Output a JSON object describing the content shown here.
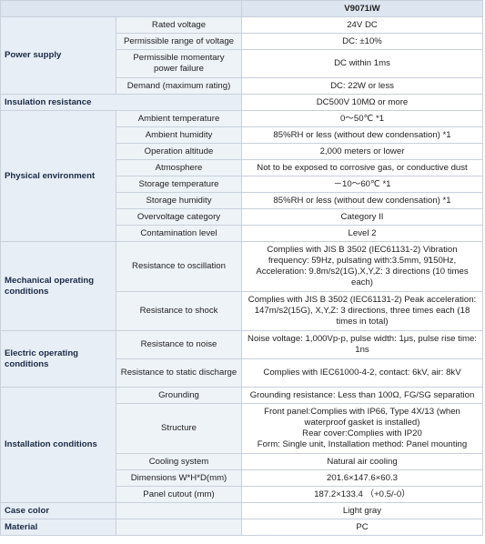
{
  "model": "V9071iW",
  "groups": [
    {
      "category": "Power supply",
      "rows": [
        {
          "param": "Rated voltage",
          "value": "24V DC"
        },
        {
          "param": "Permissible range of voltage",
          "value": "DC: ±10%"
        },
        {
          "param": "Permissible momentary power failure",
          "value": "DC within 1ms"
        },
        {
          "param": "Demand (maximum rating)",
          "value": "DC: 22W or less"
        }
      ]
    },
    {
      "category": "Insulation resistance",
      "value": "DC500V 10MΩ or more"
    },
    {
      "category": "Physical environment",
      "rows": [
        {
          "param": "Ambient temperature",
          "value": "0～50℃ *1"
        },
        {
          "param": "Ambient humidity",
          "value": "85%RH or less (without dew condensation) *1"
        },
        {
          "param": "Operation altitude",
          "value": "2,000 meters or lower"
        },
        {
          "param": "Atmosphere",
          "value": "Not to be exposed to corrosive gas, or conductive dust"
        },
        {
          "param": "Storage temperature",
          "value": "－10～60℃ *1"
        },
        {
          "param": "Storage humidity",
          "value": "85%RH or less (without dew condensation) *1"
        },
        {
          "param": "Overvoltage category",
          "value": "Category II"
        },
        {
          "param": "Contamination level",
          "value": "Level 2"
        }
      ]
    },
    {
      "category": "Mechanical operating conditions",
      "rows": [
        {
          "param": "Resistance to oscillation",
          "value": "Complies with JIS B 3502 (IEC61131-2) Vibration frequency: 5̃9Hz, pulsating with:3.5mm, 9̃150Hz, Acceleration: 9.8m/s2(1G),X,Y,Z: 3 directions (10 times each)"
        },
        {
          "param": "Resistance to shock",
          "value": "Complies with JIS B 3502 (IEC61131-2) Peak acceleration: 147m/s2(15G), X,Y,Z: 3 directions, three times each (18 times in total)"
        }
      ]
    },
    {
      "category": "Electric operating conditions",
      "rows": [
        {
          "param": "Resistance to noise",
          "value": "Noise voltage: 1,000Vp-p, pulse width: 1μs, pulse rise time: 1ns"
        },
        {
          "param": "Resistance to static discharge",
          "value": "Complies with IEC61000-4-2, contact: 6kV, air: 8kV"
        }
      ]
    },
    {
      "category": "Installation conditions",
      "rows": [
        {
          "param": "Grounding",
          "value": "Grounding resistance: Less than 100Ω, FG/SG separation"
        },
        {
          "param": "Structure",
          "lines": [
            "Front panel:Complies with IP66, Type 4X/13 (when waterproof gasket is installed)",
            "Rear cover:Complies with IP20",
            "Form: Single unit, Installation method: Panel mounting"
          ]
        },
        {
          "param": "Cooling system",
          "value": "Natural air cooling"
        },
        {
          "param": "Dimensions W*H*D(mm)",
          "value": "201.6×147.6×60.3"
        },
        {
          "param": "Panel cutout (mm)",
          "value": "187.2×133.4 （+0.5/-0）"
        }
      ]
    },
    {
      "category": "Case color",
      "value": "Light gray"
    },
    {
      "category": "Material",
      "value": "PC"
    }
  ]
}
